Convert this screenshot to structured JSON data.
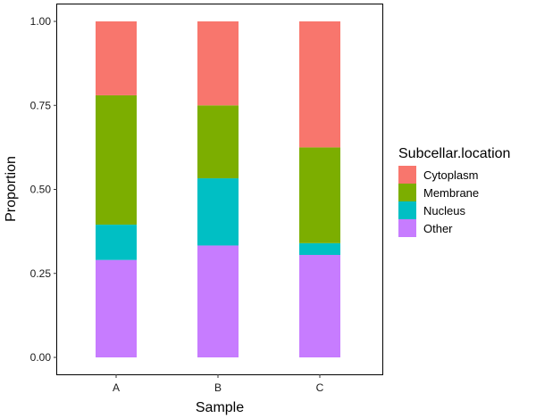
{
  "chart_data": {
    "type": "bar",
    "stacked": true,
    "categories": [
      "A",
      "B",
      "C"
    ],
    "series": [
      {
        "name": "Other",
        "values": [
          0.29,
          0.333,
          0.305
        ],
        "color": "#C77CFF"
      },
      {
        "name": "Nucleus",
        "values": [
          0.105,
          0.2,
          0.035
        ],
        "color": "#00BFC4"
      },
      {
        "name": "Membrane",
        "values": [
          0.385,
          0.217,
          0.285
        ],
        "color": "#7CAE00"
      },
      {
        "name": "Cytoplasm",
        "values": [
          0.22,
          0.25,
          0.375
        ],
        "color": "#F8766D"
      }
    ],
    "xlabel": "Sample",
    "ylabel": "Proportion",
    "ylim": [
      0,
      1
    ],
    "yticks": [
      "0.00",
      "0.25",
      "0.50",
      "0.75",
      "1.00"
    ],
    "grid": false,
    "legend": {
      "title": "Subcellar.location",
      "position": "right",
      "entries": [
        "Cytoplasm",
        "Membrane",
        "Nucleus",
        "Other"
      ]
    }
  }
}
